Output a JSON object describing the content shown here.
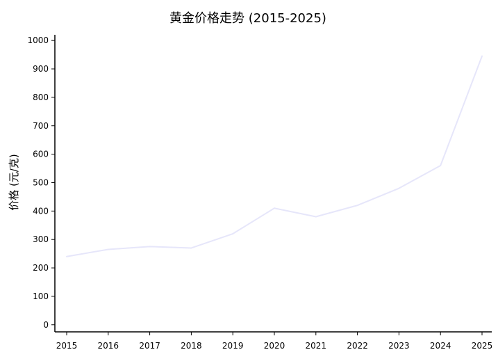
{
  "chart_data": {
    "type": "line",
    "title": "黄金价格走势 (2015-2025)",
    "xlabel": "",
    "ylabel": "价格 (元/克)",
    "x": [
      "2015",
      "2016",
      "2017",
      "2018",
      "2019",
      "2020",
      "2021",
      "2022",
      "2023",
      "2024",
      "2025"
    ],
    "series": [
      {
        "values": [
          240,
          265,
          275,
          270,
          320,
          410,
          380,
          420,
          480,
          560,
          945
        ],
        "color": "#e6e6fa"
      }
    ],
    "ylim": [
      -25,
      1020
    ],
    "yticks": [
      "0",
      "100",
      "200",
      "300",
      "400",
      "500",
      "600",
      "700",
      "800",
      "900",
      "1000"
    ],
    "grid": false,
    "legend": false
  }
}
